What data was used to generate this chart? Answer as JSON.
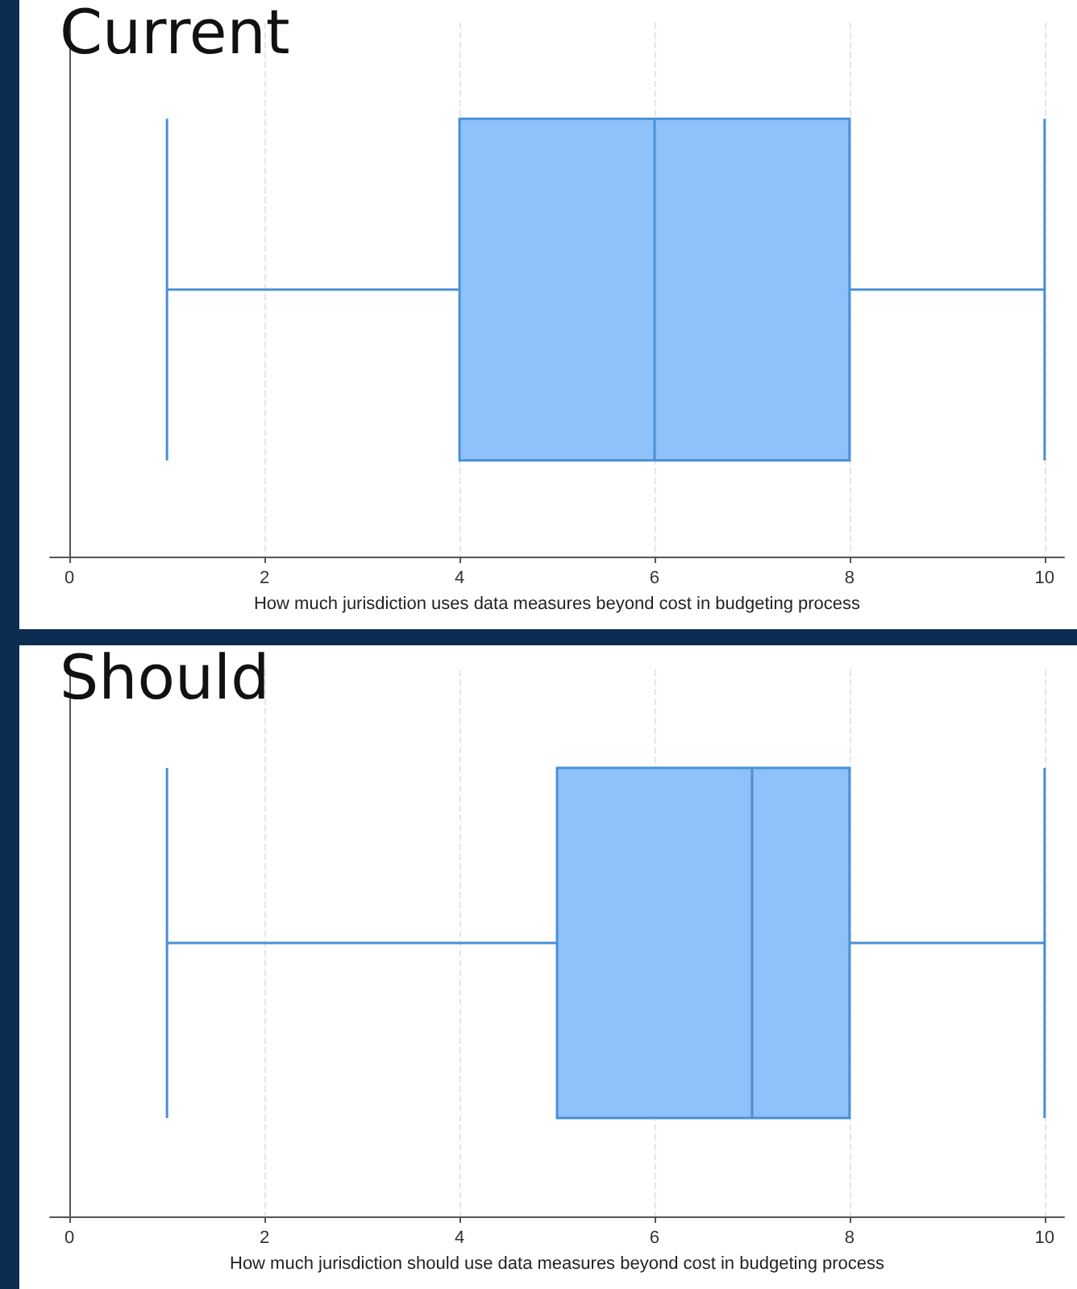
{
  "chart_data": [
    {
      "type": "box",
      "title": "Current",
      "xlabel": "How much jurisdiction uses data measures beyond cost in budgeting process",
      "orientation": "horizontal",
      "categories": [
        null
      ],
      "series": [
        {
          "color": "#8fc1fb",
          "boxes": [
            {
              "low": 1,
              "q1": 4,
              "median": 6,
              "q3": 8,
              "high": 10
            }
          ]
        }
      ],
      "xlim": [
        -0.2,
        10.2
      ],
      "xticks": [
        0,
        2,
        4,
        6,
        8,
        10
      ],
      "grid": "x",
      "tick_labels": "x"
    },
    {
      "type": "box",
      "title": "Should",
      "xlabel": "How much jurisdiction should use data measures beyond cost in budgeting process",
      "orientation": "horizontal",
      "categories": [
        null
      ],
      "series": [
        {
          "color": "#8fc1fb",
          "boxes": [
            {
              "low": 1,
              "q1": 5,
              "median": 7,
              "q3": 8,
              "high": 10
            }
          ]
        }
      ],
      "xlim": [
        -0.2,
        10.2
      ],
      "xticks": [
        0,
        2,
        4,
        6,
        8,
        10
      ],
      "grid": "x",
      "tick_labels": "x"
    }
  ]
}
